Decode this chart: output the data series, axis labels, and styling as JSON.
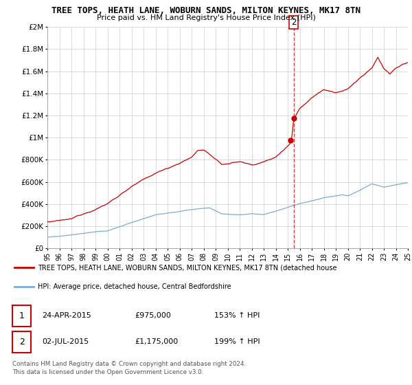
{
  "title": "TREE TOPS, HEATH LANE, WOBURN SANDS, MILTON KEYNES, MK17 8TN",
  "subtitle": "Price paid vs. HM Land Registry's House Price Index (HPI)",
  "red_line_color": "#cc0000",
  "blue_line_color": "#7aadcf",
  "background_color": "#ffffff",
  "grid_color": "#cccccc",
  "ylim": [
    0,
    2000000
  ],
  "yticks": [
    0,
    200000,
    400000,
    600000,
    800000,
    1000000,
    1200000,
    1400000,
    1600000,
    1800000,
    2000000
  ],
  "ytick_labels": [
    "£0",
    "£200K",
    "£400K",
    "£600K",
    "£800K",
    "£1M",
    "£1.2M",
    "£1.4M",
    "£1.6M",
    "£1.8M",
    "£2M"
  ],
  "year_start": 1995,
  "year_end": 2025,
  "sale1_price": 975000,
  "sale2_price": 1175000,
  "dashed_line_year": 2015.5,
  "legend_red_label": "TREE TOPS, HEATH LANE, WOBURN SANDS, MILTON KEYNES, MK17 8TN (detached house",
  "legend_blue_label": "HPI: Average price, detached house, Central Bedfordshire",
  "table_row1": [
    "1",
    "24-APR-2015",
    "£975,000",
    "153% ↑ HPI"
  ],
  "table_row2": [
    "2",
    "02-JUL-2015",
    "£1,175,000",
    "199% ↑ HPI"
  ],
  "footer": "Contains HM Land Registry data © Crown copyright and database right 2024.\nThis data is licensed under the Open Government Licence v3.0."
}
